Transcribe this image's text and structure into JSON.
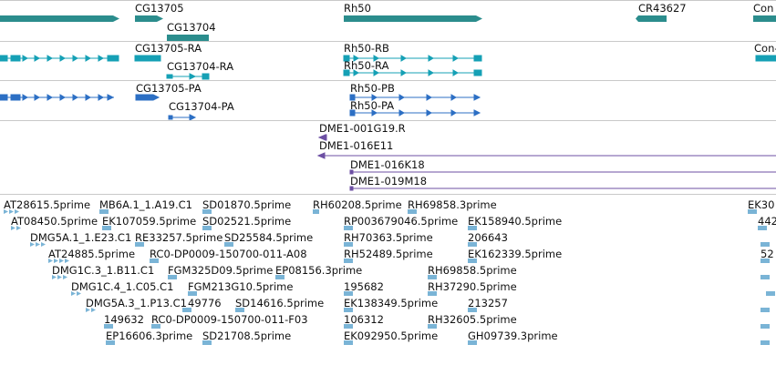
{
  "colors": {
    "gene": "#2b8d8d",
    "transcript": "#15a0b5",
    "protein": "#2c6fc4",
    "clone": "#6c4fa3",
    "est": "#7ab4d6",
    "separator": "#c9c9c9"
  },
  "gene_track": {
    "labels": [
      "CG13705",
      "CG13704",
      "Rh50",
      "CR43627",
      "Con"
    ]
  },
  "transcript_track": {
    "labels": [
      "CG13705-RA",
      "CG13704-RA",
      "Rh50-RB",
      "Rh50-RA",
      "Con-"
    ]
  },
  "protein_track": {
    "labels": [
      "CG13705-PA",
      "CG13704-PA",
      "Rh50-PB",
      "Rh50-PA"
    ]
  },
  "clone_track": {
    "labels": [
      "DME1-001G19.R",
      "DME1-016E11",
      "DME1-016K18",
      "DME1-019M18"
    ]
  },
  "est_track": {
    "labels": [
      "AT28615.5prime",
      "MB6A.1_1.A19.C1",
      "SD01870.5prime",
      "RH60208.5prime",
      "RH69858.3prime",
      "EK30",
      "AT08450.5prime",
      "EK107059.5prime",
      "SD02521.5prime",
      "RP003679046.5prime",
      "EK158940.5prime",
      "442",
      "DMG5A.1_1.E23.C1",
      "RE33257.5prime",
      "SD25584.5prime",
      "RH70363.5prime",
      "206643",
      "AT24885.5prime",
      "RC0-DP0009-150700-011-A08",
      "RH52489.5prime",
      "EK162339.5prime",
      "52",
      "DMG1C.3_1.B11.C1",
      "FGM325D09.5prime",
      "EP08156.3prime",
      "RH69858.5prime",
      "DMG1C.4_1.C05.C1",
      "FGM213G10.5prime",
      "195682",
      "RH37290.5prime",
      "DMG5A.3_1.P13.C1",
      "49776",
      "SD14616.5prime",
      "EK138349.5prime",
      "213257",
      "149632",
      "RC0-DP0009-150700-011-F03",
      "106312",
      "RH32605.5prime",
      "EP16606.3prime",
      "SD21708.5prime",
      "EK092950.5prime",
      "GH09739.3prime"
    ]
  }
}
